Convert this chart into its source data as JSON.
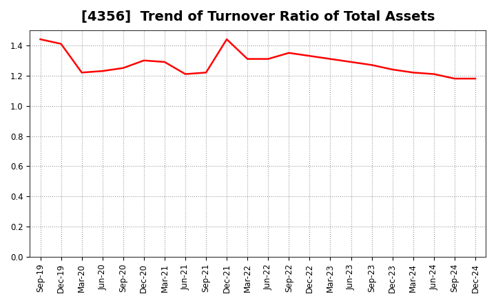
{
  "title": "[4356]  Trend of Turnover Ratio of Total Assets",
  "x_labels": [
    "Sep-19",
    "Dec-19",
    "Mar-20",
    "Jun-20",
    "Sep-20",
    "Dec-20",
    "Mar-21",
    "Jun-21",
    "Sep-21",
    "Dec-21",
    "Mar-22",
    "Jun-22",
    "Sep-22",
    "Dec-22",
    "Mar-23",
    "Jun-23",
    "Sep-23",
    "Dec-23",
    "Mar-24",
    "Jun-24",
    "Sep-24",
    "Dec-24"
  ],
  "values": [
    1.44,
    1.41,
    1.22,
    1.23,
    1.25,
    1.3,
    1.29,
    1.21,
    1.22,
    1.44,
    1.31,
    1.31,
    1.35,
    1.33,
    1.31,
    1.29,
    1.27,
    1.24,
    1.22,
    1.21,
    1.18,
    1.18
  ],
  "line_color": "#FF0000",
  "line_width": 1.8,
  "ylim": [
    0.0,
    1.5
  ],
  "yticks": [
    0.0,
    0.2,
    0.4,
    0.6,
    0.8,
    1.0,
    1.2,
    1.4
  ],
  "background_color": "#ffffff",
  "grid_color": "#999999",
  "title_fontsize": 14,
  "tick_fontsize": 8.5
}
